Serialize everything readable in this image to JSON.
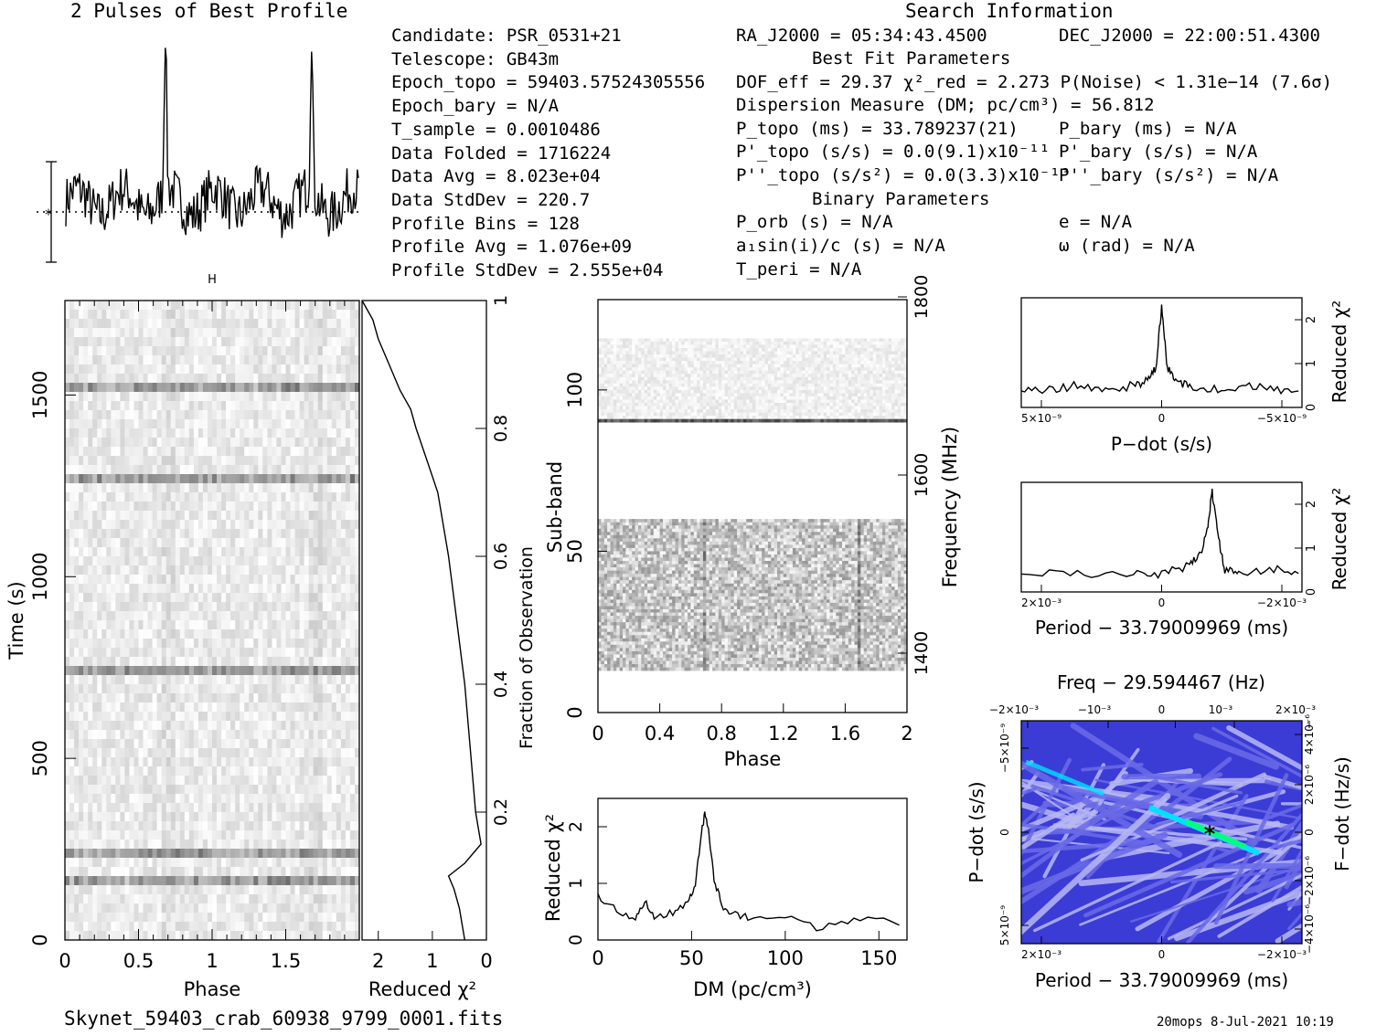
{
  "header": {
    "profile_title": "2 Pulses of Best Profile",
    "search_title": "Search Information",
    "best_fit_title": "Best Fit Parameters",
    "binary_title": "Binary Parameters"
  },
  "info_left": [
    "Candidate:  PSR_0531+21",
    "Telescope:  GB43m",
    "Epoch_topo = 59403.57524305556",
    "Epoch_bary = N/A",
    "T_sample        =  0.0010486",
    "Data Folded     =  1716224",
    "Data Avg        =  8.023e+04",
    "Data StdDev     =  220.7",
    "Profile Bins    =  128",
    "Profile Avg     =  1.076e+09",
    "Profile StdDev  =  2.555e+04"
  ],
  "info_mid": {
    "ra": "RA_J2000 = 05:34:43.4500",
    "dec": "DEC_J2000 = 22:00:51.4300",
    "dof": "DOF_eff = 29.37  χ²_red = 2.273  P(Noise) < 1.31e−14  (7.6σ)",
    "dm": "Dispersion Measure (DM; pc/cm³) = 56.812",
    "ptopo": "P_topo (ms) =  33.789237(21)",
    "pbary": "P_bary (ms) = N/A",
    "pdtopo": "P'_topo (s/s) = 0.0(9.1)x10⁻¹¹",
    "pdbary": "P'_bary (s/s) = N/A",
    "pddtopo": "P''_topo (s/s²) = 0.0(3.3)x10⁻¹³",
    "pddbary": "P''_bary (s/s²) = N/A",
    "porb": "P_orb (s) = N/A",
    "ecc": "e = N/A",
    "a1sini": "a₁sin(i)/c (s) = N/A",
    "omega": "ω (rad) = N/A",
    "tperi": "T_peri = N/A"
  },
  "footer": {
    "filename": "Skynet_59403_crab_60938_9799_0001.fits",
    "stamp": "20mops  8-Jul-2021 10:19"
  },
  "chart_data": [
    {
      "type": "line",
      "name": "profile",
      "title": "2 Pulses of Best Profile",
      "x_range": [
        0,
        2
      ],
      "peaks_at_phase": [
        0.68,
        1.68
      ],
      "baseline": 0.27,
      "peak_height": 1.0
    },
    {
      "type": "heatmap",
      "name": "time-phase",
      "xlabel": "Phase",
      "ylabel": "Time (s)",
      "xlim": [
        0,
        2
      ],
      "ylim": [
        0,
        1760
      ],
      "xticks": [
        "0",
        "0.5",
        "1",
        "1.5"
      ],
      "yticks": [
        "0",
        "500",
        "1000",
        "1500"
      ],
      "dark_rows_time": [
        180,
        240,
        750,
        1290,
        1530
      ]
    },
    {
      "type": "line",
      "name": "reduced-chi2-vs-fraction",
      "xlabel": "Reduced χ²",
      "ylabel": "Fraction of Observation",
      "xlim": [
        2.3,
        0
      ],
      "ylim": [
        0,
        1
      ],
      "xticks": [
        "2",
        "1",
        "0"
      ],
      "yticks": [
        "0.2",
        "0.4",
        "0.6",
        "0.8",
        "1"
      ],
      "x": [
        0.4,
        0.5,
        0.6,
        0.7,
        0.4,
        0.1,
        0.2,
        0.3,
        0.4,
        0.55,
        0.7,
        0.9,
        1.1,
        1.3,
        1.4,
        1.6,
        1.8,
        2.0,
        2.1,
        2.3
      ],
      "y": [
        0.0,
        0.05,
        0.08,
        0.1,
        0.12,
        0.15,
        0.2,
        0.3,
        0.4,
        0.5,
        0.6,
        0.7,
        0.75,
        0.8,
        0.83,
        0.86,
        0.9,
        0.94,
        0.97,
        1.0
      ]
    },
    {
      "type": "heatmap",
      "name": "subband-phase",
      "xlabel": "Phase",
      "ylabel": "Sub-band",
      "y2label": "Frequency (MHz)",
      "xlim": [
        0,
        2
      ],
      "ylim": [
        0,
        128
      ],
      "xticks": [
        "0",
        "0.4",
        "0.8",
        "1.2",
        "1.6",
        "2"
      ],
      "yticks": [
        "0",
        "50",
        "100"
      ],
      "y2ticks": [
        "1400",
        "1600",
        "1800"
      ],
      "masked_rows": [
        [
          60,
          90
        ]
      ]
    },
    {
      "type": "line",
      "name": "dm-chi2",
      "xlabel": "DM (pc/cm³)",
      "ylabel": "Reduced χ²",
      "xlim": [
        0,
        165
      ],
      "ylim": [
        0,
        2.5
      ],
      "xticks": [
        "0",
        "50",
        "100",
        "150"
      ],
      "yticks": [
        "0",
        "1",
        "2"
      ],
      "x": [
        0,
        10,
        20,
        25,
        30,
        40,
        48,
        52,
        55,
        57,
        59,
        62,
        66,
        72,
        80,
        100,
        120,
        140,
        165
      ],
      "y": [
        0.8,
        0.5,
        0.4,
        0.7,
        0.4,
        0.5,
        0.7,
        1.0,
        1.8,
        2.25,
        1.9,
        1.1,
        0.6,
        0.5,
        0.4,
        0.4,
        0.2,
        0.35,
        0.3
      ]
    },
    {
      "type": "line",
      "name": "pdot-chi2",
      "xlabel": "P−dot (s/s)",
      "ylabel": "Reduced χ²",
      "xticks": [
        "5×10⁻⁹",
        "0",
        "−5×10⁻⁹"
      ],
      "yticks": [
        "0",
        "1",
        "2"
      ],
      "ylim": [
        0,
        2.5
      ],
      "x": [
        -1,
        -0.8,
        -0.6,
        -0.4,
        -0.2,
        -0.1,
        -0.04,
        0,
        0.04,
        0.1,
        0.2,
        0.4,
        0.6,
        0.8,
        1
      ],
      "y": [
        0.4,
        0.4,
        0.5,
        0.4,
        0.5,
        0.6,
        0.9,
        2.3,
        0.9,
        0.6,
        0.5,
        0.4,
        0.5,
        0.4,
        0.3
      ]
    },
    {
      "type": "line",
      "name": "period-chi2",
      "xlabel": "Period − 33.79009969 (ms)",
      "ylabel": "Reduced χ²",
      "xticks": [
        "2×10⁻³",
        "0",
        "−2×10⁻³"
      ],
      "yticks": [
        "0",
        "1",
        "2"
      ],
      "ylim": [
        0,
        2.5
      ],
      "x": [
        -1,
        -0.6,
        -0.2,
        0,
        0.2,
        0.28,
        0.33,
        0.36,
        0.4,
        0.45,
        0.55,
        0.8,
        1
      ],
      "y": [
        0.5,
        0.4,
        0.4,
        0.4,
        0.6,
        0.9,
        1.5,
        2.3,
        1.3,
        0.5,
        0.4,
        0.5,
        0.5
      ]
    },
    {
      "type": "heatmap",
      "name": "period-pdot-plane",
      "title": "Freq − 29.594467 (Hz)",
      "xlabel": "Period − 33.79009969 (ms)",
      "ylabel": "P−dot (s/s)",
      "x2label": "Freq − 29.594467 (Hz)",
      "y2label": "F−dot (Hz/s)",
      "xticks": [
        "2×10⁻³",
        "0",
        "−2×10⁻³"
      ],
      "x2ticks": [
        "−2×10⁻³",
        "−10⁻³",
        "0",
        "10⁻³",
        "2×10⁻³"
      ],
      "yticks": [
        "−5×10⁻⁹",
        "0",
        "5×10⁻⁹"
      ],
      "y2ticks": [
        "4×10⁻⁶",
        "2×10⁻⁶",
        "0",
        "−2×10⁻⁶",
        "−4×10⁻⁶"
      ],
      "colors": [
        "#3b3bd6",
        "#6a6ae8",
        "#b8b8f5",
        "#00e0ff",
        "#00ff80"
      ]
    }
  ]
}
